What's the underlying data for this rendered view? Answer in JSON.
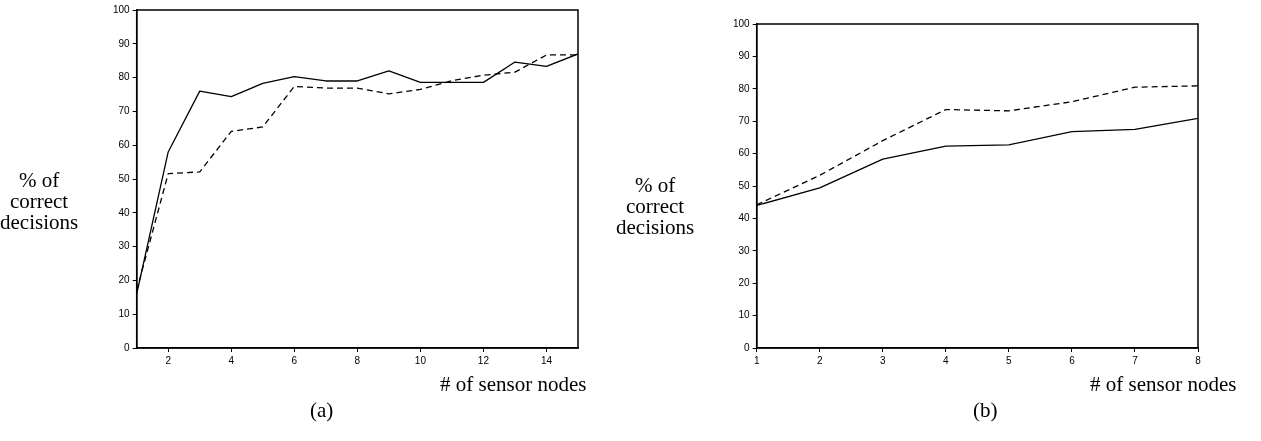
{
  "chart_data": [
    {
      "type": "line",
      "xlabel": "# of sensor nodes",
      "ylabel": "% of\ncorrect\ndecisions",
      "annotations": [
        "(a)"
      ],
      "xlim": [
        1,
        15
      ],
      "xticks": [
        2,
        4,
        6,
        8,
        10,
        12,
        14
      ],
      "ylim": [
        0,
        100
      ],
      "yticks": [
        0,
        10,
        20,
        30,
        40,
        50,
        60,
        70,
        80,
        90,
        100
      ],
      "grid": false,
      "legend": false,
      "marker": "none",
      "x": [
        1,
        2,
        3,
        4,
        5,
        6,
        7,
        8,
        9,
        10,
        11,
        12,
        13,
        14,
        15
      ],
      "series": [
        {
          "color": "#000000",
          "line_style": "solid",
          "values": [
            16,
            58,
            76,
            74.4,
            78.3,
            80.3,
            79,
            79,
            82,
            78.6,
            78.6,
            78.6,
            84.6,
            83.3,
            87
          ]
        },
        {
          "color": "#000000",
          "line_style": "dashed",
          "values": [
            17,
            51.6,
            52.1,
            64.1,
            65.4,
            77.4,
            76.9,
            76.9,
            75.2,
            76.5,
            79.1,
            80.7,
            81.6,
            86.7,
            86.7
          ]
        }
      ]
    },
    {
      "type": "line",
      "xlabel": "# of sensor nodes",
      "ylabel": "% of\ncorrect\ndecisions",
      "annotations": [
        "(b)"
      ],
      "xlim": [
        1,
        8
      ],
      "xticks": [
        1,
        2,
        3,
        4,
        5,
        6,
        7,
        8
      ],
      "ylim": [
        0,
        100
      ],
      "yticks": [
        0,
        10,
        20,
        30,
        40,
        50,
        60,
        70,
        80,
        90,
        100
      ],
      "grid": false,
      "legend": false,
      "marker": "none",
      "x": [
        1,
        2,
        3,
        4,
        5,
        6,
        7,
        8
      ],
      "series": [
        {
          "color": "#000000",
          "line_style": "solid",
          "values": [
            44,
            49.4,
            58.3,
            62.3,
            62.7,
            66.8,
            67.5,
            70.9
          ]
        },
        {
          "color": "#000000",
          "line_style": "dashed",
          "values": [
            44.2,
            53.3,
            64,
            73.6,
            73.2,
            76,
            80.5,
            80.9
          ]
        }
      ]
    }
  ]
}
